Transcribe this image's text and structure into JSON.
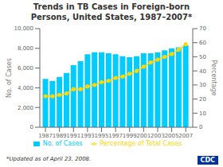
{
  "chart_data": {
    "type": "bar",
    "title": "Trends in TB Cases in Foreign-born\nPersons, United States, 1987–2007*",
    "x": [
      1987,
      1988,
      1989,
      1990,
      1991,
      1992,
      1993,
      1994,
      1995,
      1996,
      1997,
      1998,
      1999,
      2000,
      2001,
      2002,
      2003,
      2004,
      2005,
      2006,
      2007
    ],
    "series": [
      {
        "name": "No. of Cases",
        "type": "bar",
        "color": "#00CCFF",
        "values": [
          4900,
          4700,
          5100,
          5500,
          6300,
          6700,
          7400,
          7600,
          7600,
          7500,
          7400,
          7200,
          7100,
          7200,
          7500,
          7500,
          7600,
          7800,
          8000,
          8100,
          8300
        ]
      },
      {
        "name": "Percentage of Total Cases",
        "type": "line",
        "axis": "y2",
        "color": "#FFD700",
        "marker": "circle",
        "values": [
          22,
          22,
          23,
          24,
          27,
          27,
          29,
          30,
          32,
          33,
          35,
          36,
          38,
          40,
          43,
          46,
          48,
          50,
          52,
          55,
          59
        ]
      }
    ],
    "ylabel": "No. of Cases",
    "y2label": "Percentage",
    "xlim": [
      1986.2,
      2008.0
    ],
    "xticks": [
      1987,
      1989,
      1991,
      1993,
      1995,
      1997,
      1999,
      2001,
      2003,
      2005,
      2007
    ],
    "ylim": [
      0,
      10000
    ],
    "yticks": [
      0,
      {
        "value": 2000,
        "label": "2,000"
      },
      {
        "value": 4000,
        "label": "4,000"
      },
      {
        "value": 6000,
        "label": "6,000"
      },
      {
        "value": 8000,
        "label": "8,000"
      },
      {
        "value": 10000,
        "label": "10,000"
      }
    ],
    "y2lim": [
      0,
      70
    ],
    "y2ticks": [
      0,
      10,
      20,
      30,
      40,
      50,
      60,
      70
    ],
    "grid": false,
    "legend": "bottom",
    "annotations": [
      "*Updated as of April 23, 2008.",
      "CDC"
    ]
  }
}
